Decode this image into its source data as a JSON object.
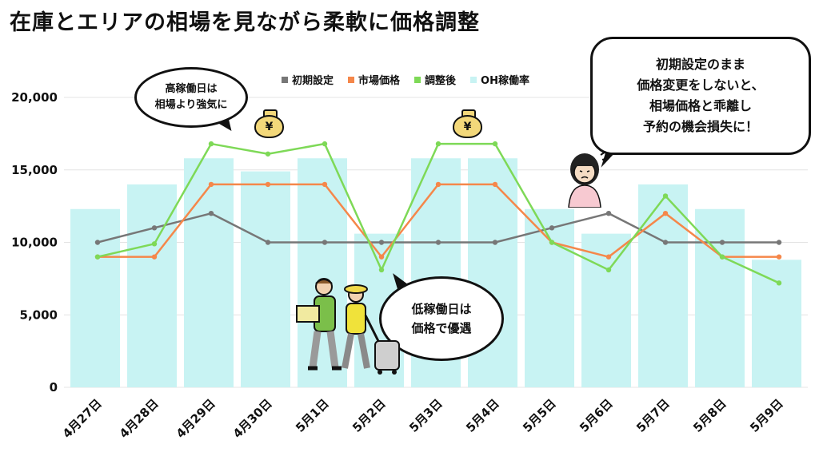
{
  "title": "在庫とエリアの相場を見ながら柔軟に価格調整",
  "chart_data": {
    "type": "bar+line",
    "categories": [
      "4月27日",
      "4月28日",
      "4月29日",
      "4月30日",
      "5月1日",
      "5月2日",
      "5月3日",
      "5月4日",
      "5月5日",
      "5月6日",
      "5月7日",
      "5月8日",
      "5月9日"
    ],
    "y_ticks": [
      "0",
      "5,000",
      "10,000",
      "15,000",
      "20,000"
    ],
    "ylim": [
      0,
      20000
    ],
    "grid": true,
    "legend_position": "top",
    "series": [
      {
        "name": "初期設定",
        "type": "line",
        "color": "#777777",
        "values": [
          10000,
          11000,
          12000,
          10000,
          10000,
          10000,
          10000,
          10000,
          11000,
          12000,
          10000,
          10000,
          10000
        ]
      },
      {
        "name": "市場価格",
        "type": "line",
        "color": "#f5874a",
        "values": [
          9000,
          9000,
          14000,
          14000,
          14000,
          9000,
          14000,
          14000,
          10000,
          9000,
          12000,
          9000,
          9000
        ]
      },
      {
        "name": "調整後",
        "type": "line",
        "color": "#7ed957",
        "values": [
          9000,
          9900,
          16800,
          16100,
          16800,
          8100,
          16800,
          16800,
          10000,
          8100,
          13200,
          9000,
          7200
        ]
      },
      {
        "name": "OH稼働率",
        "type": "bar",
        "color": "#c8f3f3",
        "values": [
          12300,
          14000,
          15800,
          14900,
          15800,
          10600,
          15800,
          15800,
          12300,
          10600,
          14000,
          12300,
          8800
        ]
      }
    ]
  },
  "bubbles": {
    "high_demand": "高稼働日は\n相場より強気に",
    "low_demand": "低稼働日は\n価格で優遇",
    "warning": "初期設定のまま\n価格変更をしないと、\n相場価格と乖離し\n予約の機会損失に！"
  },
  "money_symbol": "¥",
  "icons": [
    "money-bag-icon",
    "money-bag-icon"
  ],
  "illustrations": [
    "travelers-illustration",
    "worried-woman-illustration"
  ]
}
